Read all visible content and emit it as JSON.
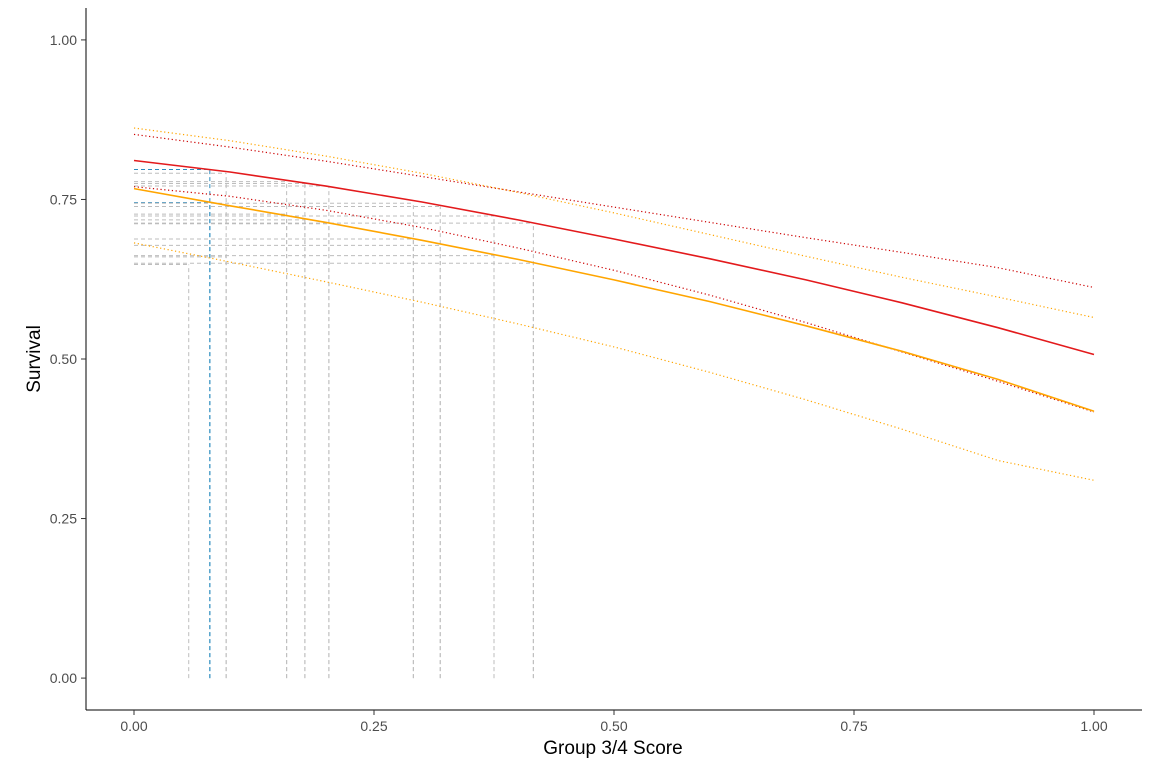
{
  "chart_data": {
    "type": "line",
    "title": "",
    "xlabel": "Group 3/4 Score",
    "ylabel": "Survival",
    "xlim": [
      -0.05,
      1.05
    ],
    "ylim": [
      -0.05,
      1.05
    ],
    "grid": false,
    "legend": "none",
    "x_ticks": [
      0,
      0.25,
      0.5,
      0.75,
      1
    ],
    "x_tick_labels": [
      "0.00",
      "0.25",
      "0.50",
      "0.75",
      "1.00"
    ],
    "y_ticks": [
      0,
      0.25,
      0.5,
      0.75,
      1
    ],
    "y_tick_labels": [
      "0.00",
      "0.25",
      "0.50",
      "0.75",
      "1.00"
    ],
    "series": [
      {
        "color": "#e31a1c",
        "style": "solid",
        "x": [
          0,
          0.1,
          0.2,
          0.3,
          0.4,
          0.5,
          0.6,
          0.7,
          0.8,
          0.9,
          1.0
        ],
        "values": [
          0.811,
          0.793,
          0.771,
          0.746,
          0.718,
          0.688,
          0.657,
          0.624,
          0.588,
          0.549,
          0.507
        ]
      },
      {
        "color": "#cc0000",
        "style": "dotted",
        "x": [
          0,
          0.1,
          0.2,
          0.3,
          0.4,
          0.5,
          0.6,
          0.7,
          0.8,
          0.9,
          1.0
        ],
        "values": [
          0.852,
          0.832,
          0.81,
          0.786,
          0.762,
          0.738,
          0.714,
          0.69,
          0.667,
          0.643,
          0.612
        ]
      },
      {
        "color": "#cc0000",
        "style": "dotted",
        "x": [
          0,
          0.1,
          0.2,
          0.3,
          0.4,
          0.5,
          0.6,
          0.7,
          0.8,
          0.9,
          1.0
        ],
        "values": [
          0.77,
          0.755,
          0.733,
          0.706,
          0.674,
          0.639,
          0.6,
          0.557,
          0.511,
          0.465,
          0.417
        ]
      },
      {
        "color": "#ffa500",
        "style": "solid",
        "x": [
          0,
          0.1,
          0.2,
          0.3,
          0.4,
          0.5,
          0.6,
          0.7,
          0.8,
          0.9,
          1.0
        ],
        "values": [
          0.767,
          0.74,
          0.714,
          0.686,
          0.656,
          0.624,
          0.59,
          0.552,
          0.512,
          0.468,
          0.418
        ]
      },
      {
        "color": "#ffa500",
        "style": "dotted",
        "x": [
          0,
          0.1,
          0.2,
          0.3,
          0.4,
          0.5,
          0.6,
          0.7,
          0.8,
          0.9,
          1.0
        ],
        "values": [
          0.862,
          0.842,
          0.818,
          0.791,
          0.761,
          0.729,
          0.695,
          0.661,
          0.628,
          0.597,
          0.565
        ]
      },
      {
        "color": "#ffa500",
        "style": "dotted",
        "x": [
          0,
          0.1,
          0.2,
          0.3,
          0.4,
          0.5,
          0.6,
          0.7,
          0.8,
          0.9,
          1.0
        ],
        "values": [
          0.682,
          0.652,
          0.621,
          0.589,
          0.555,
          0.519,
          0.479,
          0.436,
          0.39,
          0.341,
          0.31
        ]
      }
    ],
    "reference_lines": [
      {
        "x": 0.057,
        "y": 0.648,
        "color": "#bdbdbd"
      },
      {
        "x": 0.079,
        "y": 0.797,
        "color": "#2b8cbe"
      },
      {
        "x": 0.079,
        "y": 0.745,
        "color": "#2b8cbe"
      },
      {
        "x": 0.096,
        "y": 0.791,
        "color": "#bdbdbd"
      },
      {
        "x": 0.096,
        "y": 0.66,
        "color": "#bdbdbd"
      },
      {
        "x": 0.159,
        "y": 0.778,
        "color": "#bdbdbd"
      },
      {
        "x": 0.159,
        "y": 0.727,
        "color": "#bdbdbd"
      },
      {
        "x": 0.178,
        "y": 0.775,
        "color": "#bdbdbd"
      },
      {
        "x": 0.178,
        "y": 0.718,
        "color": "#bdbdbd"
      },
      {
        "x": 0.203,
        "y": 0.771,
        "color": "#bdbdbd"
      },
      {
        "x": 0.203,
        "y": 0.712,
        "color": "#bdbdbd"
      },
      {
        "x": 0.291,
        "y": 0.744,
        "color": "#bdbdbd"
      },
      {
        "x": 0.291,
        "y": 0.688,
        "color": "#bdbdbd"
      },
      {
        "x": 0.319,
        "y": 0.739,
        "color": "#bdbdbd"
      },
      {
        "x": 0.319,
        "y": 0.678,
        "color": "#bdbdbd"
      },
      {
        "x": 0.375,
        "y": 0.724,
        "color": "#bdbdbd"
      },
      {
        "x": 0.375,
        "y": 0.662,
        "color": "#bdbdbd"
      },
      {
        "x": 0.416,
        "y": 0.713,
        "color": "#bdbdbd"
      },
      {
        "x": 0.416,
        "y": 0.65,
        "color": "#bdbdbd"
      }
    ]
  }
}
